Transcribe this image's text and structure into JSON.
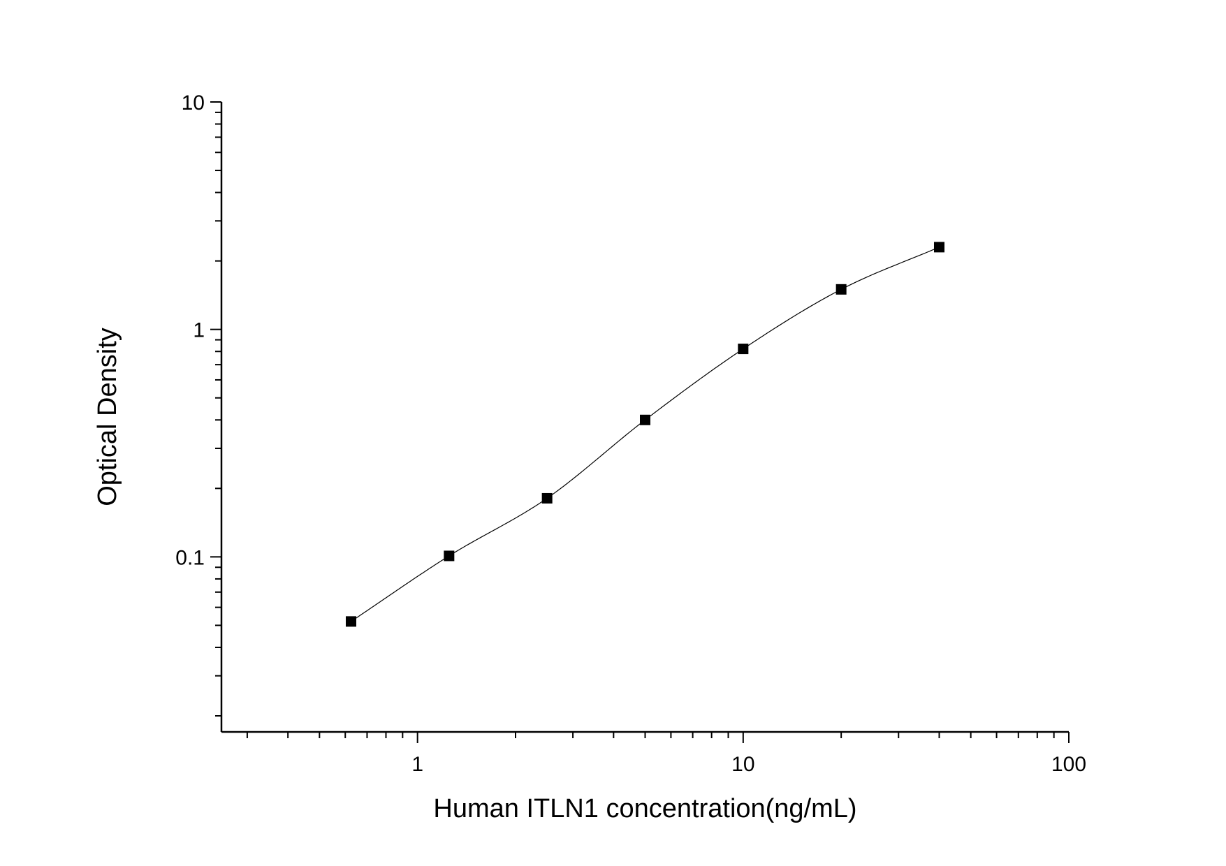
{
  "chart_data": {
    "type": "scatter",
    "title": "",
    "xlabel": "Human ITLN1 concentration(ng/mL)",
    "ylabel": "Optical Density",
    "x_scale": "log",
    "y_scale": "log",
    "xlim": [
      0.25,
      100
    ],
    "ylim": [
      0.017,
      10
    ],
    "x_ticks": [
      "1",
      "10",
      "100"
    ],
    "y_ticks": [
      "0.1",
      "1",
      "10"
    ],
    "grid": false,
    "legend": "none",
    "series": [
      {
        "x": [
          0.625,
          1.25,
          2.5,
          5,
          10,
          20,
          40
        ],
        "y": [
          0.052,
          0.101,
          0.181,
          0.4,
          0.821,
          1.5,
          2.3
        ],
        "marker": "square",
        "color": "#000000",
        "fit_line": true
      }
    ]
  }
}
